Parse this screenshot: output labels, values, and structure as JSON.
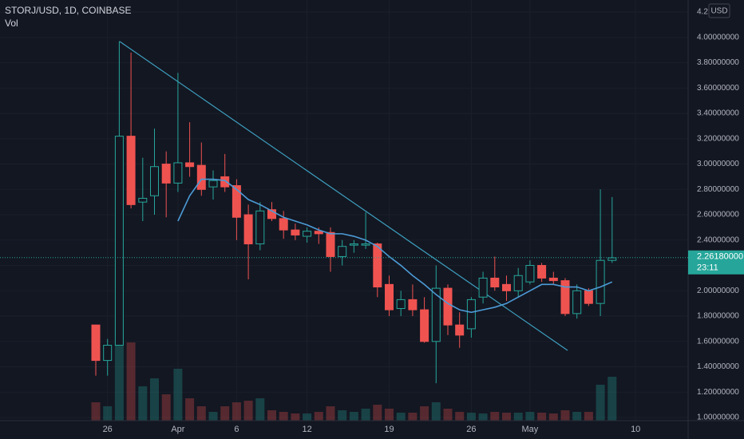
{
  "chart_data": {
    "type": "candlestick",
    "title": "STORJ/USD, 1D, COINBASE",
    "volume_label": "Vol",
    "currency": "USD",
    "categories": [
      null,
      "26",
      null,
      null,
      null,
      null,
      null,
      "Apr",
      null,
      null,
      null,
      null,
      "6",
      null,
      null,
      null,
      null,
      null,
      "12",
      null,
      null,
      null,
      null,
      null,
      null,
      "19",
      null,
      null,
      null,
      null,
      null,
      null,
      "26",
      null,
      null,
      null,
      null,
      "May",
      null,
      null,
      null,
      null,
      null,
      null,
      null,
      null,
      "10"
    ],
    "open": [
      1.73,
      1.45,
      1.57,
      3.22,
      2.7,
      2.75,
      3.0,
      2.85,
      3.01,
      2.99,
      2.82,
      2.9,
      2.83,
      2.6,
      2.37,
      2.64,
      2.57,
      2.48,
      2.43,
      2.47,
      2.46,
      2.27,
      2.36,
      2.36,
      2.37,
      2.05,
      1.86,
      1.93,
      1.85,
      1.6,
      2.02,
      1.73,
      1.7,
      1.95,
      2.1,
      2.05,
      2.0,
      2.07,
      2.2,
      2.1,
      2.08,
      1.82,
      2.0,
      1.9,
      2.24,
      null,
      null
    ],
    "high": [
      1.73,
      1.62,
      3.97,
      3.88,
      3.05,
      3.28,
      3.1,
      3.72,
      3.33,
      3.17,
      2.95,
      3.08,
      2.88,
      2.68,
      2.7,
      2.7,
      2.63,
      2.53,
      2.5,
      2.5,
      2.5,
      2.4,
      2.4,
      2.62,
      2.38,
      2.12,
      2.0,
      2.05,
      1.95,
      2.2,
      2.05,
      1.83,
      1.95,
      2.15,
      2.27,
      2.12,
      2.18,
      2.24,
      2.22,
      2.15,
      2.1,
      2.05,
      2.02,
      2.8,
      2.74,
      null,
      null
    ],
    "low": [
      1.33,
      1.33,
      1.57,
      2.65,
      2.55,
      2.6,
      2.58,
      2.78,
      2.9,
      2.75,
      2.72,
      2.78,
      2.4,
      2.09,
      2.32,
      2.55,
      2.41,
      2.4,
      2.38,
      2.37,
      2.15,
      2.2,
      2.3,
      2.33,
      1.95,
      1.8,
      1.8,
      1.8,
      1.59,
      1.27,
      1.65,
      1.55,
      1.63,
      1.9,
      2.0,
      1.92,
      1.95,
      2.05,
      2.07,
      2.05,
      1.8,
      1.78,
      1.88,
      1.8,
      2.22,
      null,
      null
    ],
    "close": [
      1.45,
      1.57,
      3.22,
      2.68,
      2.73,
      2.98,
      2.85,
      3.01,
      2.98,
      2.8,
      2.87,
      2.82,
      2.58,
      2.37,
      2.63,
      2.57,
      2.48,
      2.44,
      2.47,
      2.45,
      2.27,
      2.35,
      2.37,
      2.37,
      2.03,
      1.85,
      1.93,
      1.85,
      1.6,
      2.02,
      1.73,
      1.65,
      1.93,
      2.1,
      2.03,
      2.0,
      2.12,
      2.2,
      2.1,
      2.08,
      1.82,
      2.0,
      1.9,
      2.24,
      2.26,
      null,
      null
    ],
    "volume": [
      23,
      18,
      125,
      98,
      43,
      53,
      33,
      65,
      28,
      18,
      11,
      18,
      23,
      25,
      28,
      13,
      11,
      9,
      9,
      11,
      18,
      13,
      11,
      15,
      20,
      15,
      10,
      10,
      18,
      23,
      15,
      11,
      10,
      9,
      11,
      10,
      10,
      11,
      10,
      9,
      13,
      11,
      11,
      45,
      55,
      null,
      null
    ],
    "ma": {
      "color": "#4c9bd6",
      "values": [
        null,
        null,
        null,
        null,
        null,
        null,
        null,
        2.55,
        2.75,
        2.88,
        2.88,
        2.87,
        2.8,
        2.72,
        2.68,
        2.63,
        2.58,
        2.55,
        2.52,
        2.48,
        2.45,
        2.45,
        2.43,
        2.4,
        2.35,
        2.27,
        2.2,
        2.12,
        2.05,
        1.97,
        1.9,
        1.85,
        1.83,
        1.85,
        1.87,
        1.9,
        1.95,
        2.0,
        2.05,
        2.05,
        2.03,
        2.03,
        2.0,
        2.03,
        2.07,
        null,
        null
      ]
    },
    "up_color": "#26a69a",
    "down_color": "#ef5350",
    "ylim": [
      0.975,
      4.295
    ],
    "yticks": [
      {
        "value": 1,
        "label": "1.00000000"
      },
      {
        "value": 1.2,
        "label": "1.20000000"
      },
      {
        "value": 1.4,
        "label": "1.40000000"
      },
      {
        "value": 1.6,
        "label": "1.60000000"
      },
      {
        "value": 1.8,
        "label": "1.80000000"
      },
      {
        "value": 2,
        "label": "2.00000000"
      },
      {
        "value": 2.2,
        "label": "2.20000000"
      },
      {
        "value": 2.4,
        "label": "2.40000000"
      },
      {
        "value": 2.6,
        "label": "2.60000000"
      },
      {
        "value": 2.8,
        "label": "2.80000000"
      },
      {
        "value": 3,
        "label": "3.00000000"
      },
      {
        "value": 3.2,
        "label": "3.20000000"
      },
      {
        "value": 3.4,
        "label": "3.40000000"
      },
      {
        "value": 3.6,
        "label": "3.60000000"
      },
      {
        "value": 3.8,
        "label": "3.80000000"
      },
      {
        "value": 4,
        "label": "4.00000000"
      },
      {
        "value": 4.2,
        "label": "4.2"
      }
    ],
    "last_price": {
      "value": 2.2618,
      "label": "2.26180000"
    },
    "countdown": "23:11",
    "grid": true
  }
}
